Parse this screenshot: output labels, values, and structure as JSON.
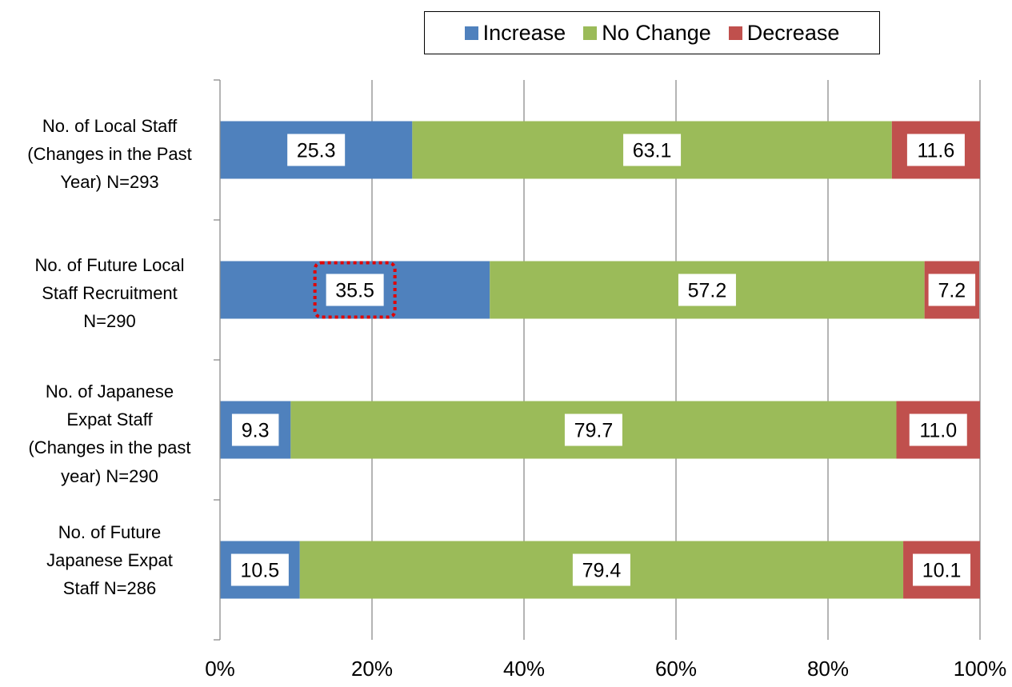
{
  "chart_data": {
    "type": "bar",
    "orientation": "horizontal",
    "stacked": "percent",
    "categories": [
      "No. of Local Staff\n(Changes in the Past\nYear) N=293",
      "No. of Future Local\nStaff Recruitment\nN=290",
      "No. of Japanese\nExpat Staff\n(Changes in the past\nyear) N=290",
      "No. of Future\nJapanese Expat\nStaff  N=286"
    ],
    "series": [
      {
        "name": "Increase",
        "color": "#4F81BD",
        "values": [
          25.3,
          35.5,
          9.3,
          10.5
        ],
        "labels": [
          "25.3",
          "35.5",
          "9.3",
          "10.5"
        ]
      },
      {
        "name": "No Change",
        "color": "#9BBB59",
        "values": [
          63.1,
          57.2,
          79.7,
          79.4
        ],
        "labels": [
          "63.1",
          "57.2",
          "79.7",
          "79.4"
        ]
      },
      {
        "name": "Decrease",
        "color": "#C0504D",
        "values": [
          11.6,
          7.2,
          11.0,
          10.1
        ],
        "labels": [
          "11.6",
          "7.2",
          "11.0",
          "10.1"
        ]
      }
    ],
    "xlim": [
      0,
      100
    ],
    "xticks": [
      "0%",
      "20%",
      "40%",
      "60%",
      "80%",
      "100%"
    ],
    "grid": true,
    "legend": "top",
    "highlight": {
      "category_index": 1,
      "series_index": 0,
      "color": "#E00000",
      "style": "dotted"
    }
  }
}
